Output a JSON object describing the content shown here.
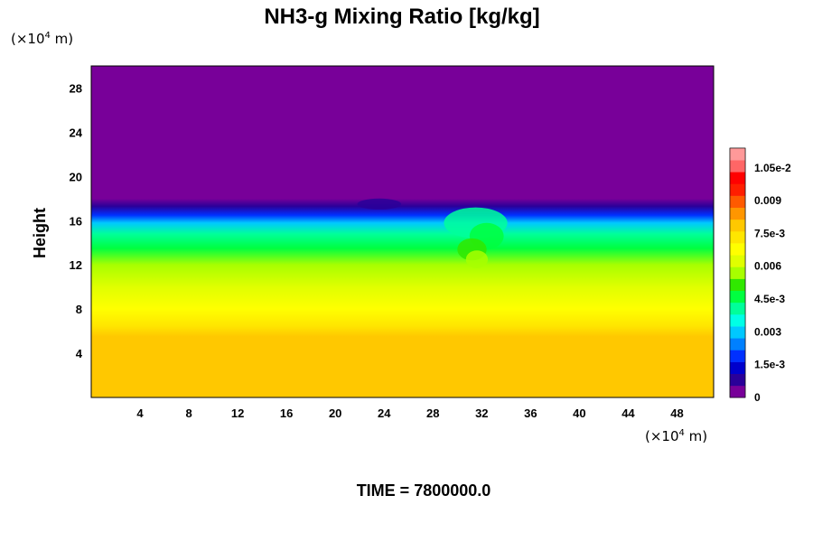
{
  "chart_data": {
    "type": "heatmap",
    "title": "NH3-g Mixing Ratio [kg/kg]",
    "ylabel": "Height",
    "xlabel": "",
    "x_unit_prefix": "(×10",
    "x_unit_exp": "4",
    "x_unit_suffix": " m)",
    "y_unit_prefix": "(×10",
    "y_unit_exp": "4",
    "y_unit_suffix": " m)",
    "xlim": [
      0,
      51
    ],
    "ylim": [
      0,
      30
    ],
    "x_ticks": [
      4,
      8,
      12,
      16,
      20,
      24,
      28,
      32,
      36,
      40,
      44,
      48
    ],
    "y_ticks": [
      4,
      8,
      12,
      16,
      20,
      24,
      28
    ],
    "colorbar": {
      "range": [
        0,
        0.0114
      ],
      "tick_values": [
        0,
        0.0015,
        0.003,
        0.0045,
        0.006,
        0.0075,
        0.009,
        0.0105
      ],
      "tick_labels": [
        "0",
        "1.5e-3",
        "0.003",
        "4.5e-3",
        "0.006",
        "7.5e-3",
        "0.009",
        "1.05e-2"
      ],
      "colors": [
        "#780099",
        "#2a0099",
        "#0000cc",
        "#0030ff",
        "#0080ff",
        "#00c8ff",
        "#00ffe6",
        "#00ff9a",
        "#00ff40",
        "#30e800",
        "#a8ff00",
        "#e0ff00",
        "#ffff00",
        "#ffe600",
        "#ffc800",
        "#ff9600",
        "#ff5a00",
        "#ff1e00",
        "#ff0000",
        "#ff6666",
        "#ff9999"
      ]
    },
    "profile": [
      {
        "height": 0,
        "value": 0.0078
      },
      {
        "height": 5.5,
        "value": 0.0078
      },
      {
        "height": 6.5,
        "value": 0.0072
      },
      {
        "height": 8,
        "value": 0.0067
      },
      {
        "height": 10,
        "value": 0.006
      },
      {
        "height": 12,
        "value": 0.0055
      },
      {
        "height": 13.5,
        "value": 0.0048
      },
      {
        "height": 14.8,
        "value": 0.0042
      },
      {
        "height": 15.8,
        "value": 0.003
      },
      {
        "height": 16.5,
        "value": 0.002
      },
      {
        "height": 17.3,
        "value": 0.001
      },
      {
        "height": 18,
        "value": 0
      }
    ],
    "anomaly": {
      "x_range": [
        27,
        36
      ],
      "height_range": [
        11,
        17
      ],
      "description": "plume of elevated mixing ratio near x = 30–34"
    },
    "time_label": "TIME = 7800000.0"
  }
}
